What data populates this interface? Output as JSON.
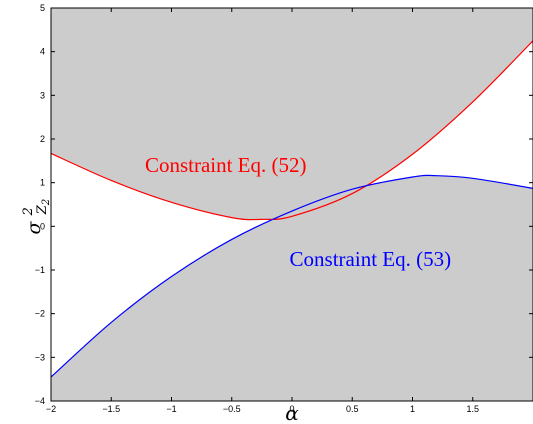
{
  "chart_data": {
    "type": "area",
    "xlabel": "α",
    "ylabel": "σ",
    "ylabel_sup": "2",
    "ylabel_sub": "Z",
    "ylabel_subsub": "2",
    "xlim": [
      -2,
      2
    ],
    "ylim": [
      -4,
      5
    ],
    "grid": false,
    "x_ticks": [
      -2,
      -1.5,
      -1,
      -0.5,
      0,
      0.5,
      1,
      1.5
    ],
    "x_tick_labels": [
      "−2",
      "−1.5",
      "−1",
      "−0.5",
      "0",
      "0.5",
      "1",
      "1.5"
    ],
    "y_ticks": [
      -4,
      -3,
      -2,
      -1,
      0,
      1,
      2,
      3,
      4,
      5
    ],
    "y_tick_labels": [
      "−4",
      "−3",
      "−2",
      "−1",
      "0",
      "1",
      "2",
      "3",
      "4",
      "5"
    ],
    "series": [
      {
        "color": "#ff0000",
        "x": [
          -2,
          -1.5,
          -1,
          -0.5,
          -0.25,
          0,
          0.5,
          1,
          1.5,
          2
        ],
        "y": [
          1.67,
          1.05,
          0.55,
          0.2,
          0.16,
          0.23,
          0.75,
          1.65,
          2.85,
          4.25
        ],
        "shade": "above"
      },
      {
        "color": "#0000ff",
        "x": [
          -2,
          -1.5,
          -1,
          -0.5,
          0,
          0.5,
          1,
          1.2,
          1.5,
          2
        ],
        "y": [
          -3.45,
          -2.2,
          -1.15,
          -0.3,
          0.35,
          0.85,
          1.13,
          1.16,
          1.1,
          0.87
        ],
        "shade": "below"
      }
    ],
    "fill_color": "#cccccc",
    "annotations": [
      {
        "text": "Constraint Eq. (52)",
        "color": "#ff0000",
        "x": -0.55,
        "y": 1.4
      },
      {
        "text": "Constraint Eq. (53)",
        "color": "#0000ff",
        "x": 0.65,
        "y": -0.75
      }
    ]
  }
}
